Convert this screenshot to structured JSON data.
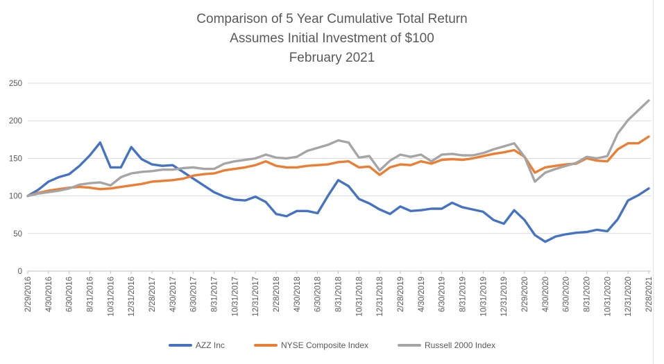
{
  "chart_data": {
    "type": "line",
    "title_lines": [
      "Comparison of 5 Year Cumulative Total Return",
      "Assumes Initial Investment of $100",
      "February 2021"
    ],
    "x_tick_labels": [
      "2/29/2016",
      "4/30/2016",
      "6/30/2016",
      "8/31/2016",
      "10/31/2016",
      "12/31/2016",
      "2/28/2017",
      "4/30/2017",
      "6/30/2017",
      "8/31/2017",
      "10/31/2017",
      "12/31/2017",
      "2/28/2018",
      "4/30/2018",
      "6/30/2018",
      "8/31/2018",
      "10/31/2018",
      "12/31/2018",
      "2/28/2019",
      "4/30/2019",
      "6/30/2019",
      "8/31/2019",
      "10/31/2019",
      "12/31/2019",
      "2/29/2020",
      "4/30/2020",
      "6/30/2020",
      "8/31/2020",
      "10/31/2020",
      "12/31/2020",
      "2/28/2021"
    ],
    "x_label_every": 2,
    "points_per_series": 61,
    "x_note": "monthly points from 2/29/2016 to 2/28/2021; labels every 2nd month",
    "y_ticks": [
      0,
      50,
      100,
      150,
      200,
      250
    ],
    "ylim": [
      0,
      250
    ],
    "grid": true,
    "legend_position": "bottom",
    "colors": {
      "axis_text": "#595959",
      "gridline": "#d9d9d9",
      "axis_line": "#bfbfbf"
    },
    "series": [
      {
        "name": "AZZ Inc",
        "color": "#4472c4",
        "values": [
          100,
          108,
          119,
          125,
          129,
          140,
          154,
          171,
          138,
          138,
          165,
          149,
          142,
          140,
          141,
          132,
          123,
          114,
          105,
          99,
          95,
          94,
          99,
          92,
          76,
          73,
          80,
          80,
          77,
          100,
          121,
          113,
          96,
          90,
          82,
          76,
          86,
          80,
          81,
          83,
          83,
          91,
          85,
          82,
          79,
          68,
          63,
          81,
          68,
          48,
          39,
          46,
          49,
          51,
          52,
          55,
          53,
          69,
          94,
          101,
          110
        ]
      },
      {
        "name": "NYSE Composite Index",
        "color": "#ed7d31",
        "values": [
          100,
          104,
          107,
          109,
          111,
          112,
          111,
          109,
          110,
          112,
          114,
          116,
          119,
          120,
          121,
          123,
          127,
          129,
          130,
          134,
          136,
          138,
          141,
          146,
          140,
          138,
          138,
          140,
          141,
          142,
          145,
          146,
          138,
          139,
          128,
          138,
          142,
          141,
          146,
          143,
          148,
          149,
          148,
          150,
          153,
          156,
          158,
          161,
          152,
          131,
          138,
          140,
          142,
          143,
          150,
          147,
          146,
          162,
          170,
          170,
          179
        ]
      },
      {
        "name": "Russell 2000 Index",
        "color": "#a5a5a5",
        "values": [
          100,
          103,
          105,
          107,
          110,
          115,
          117,
          118,
          114,
          125,
          130,
          132,
          133,
          135,
          135,
          137,
          138,
          136,
          136,
          143,
          146,
          148,
          150,
          155,
          151,
          150,
          152,
          160,
          164,
          168,
          174,
          171,
          151,
          153,
          134,
          147,
          155,
          152,
          155,
          146,
          155,
          156,
          154,
          154,
          157,
          162,
          166,
          170,
          152,
          119,
          131,
          136,
          140,
          144,
          152,
          150,
          153,
          183,
          201,
          214,
          227
        ]
      }
    ]
  }
}
